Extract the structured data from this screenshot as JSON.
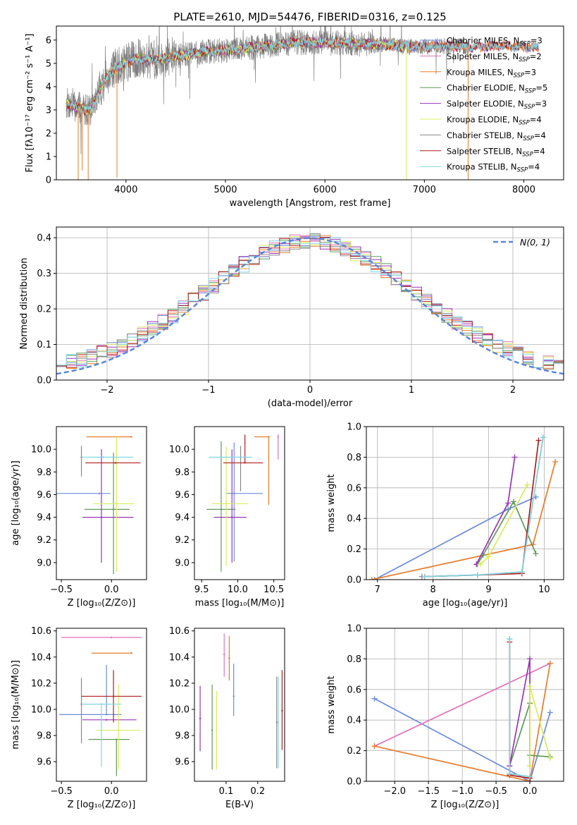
{
  "figure_title": "PLATE=2610, MJD=54476, FIBERID=0316, z=0.125",
  "colors": {
    "chabrier_miles": "#6a8bdc",
    "salpeter_miles": "#e26fb8",
    "kroupa_miles": "#e87b2c",
    "chabrier_elodie": "#5f9a57",
    "salpeter_elodie": "#9a32b8",
    "kroupa_elodie": "#d9ec5a",
    "chabrier_stelib": "#888888",
    "salpeter_stelib": "#b21c1c",
    "kroupa_stelib": "#7fd8e4",
    "gaussian": "#5b86d6",
    "grid": "#b0b0b0"
  },
  "chart_data": [
    {
      "id": "spectrum",
      "type": "line",
      "xlabel": "wavelength [Angstrom, rest frame]",
      "ylabel": "Flux [fλ10⁻¹⁷ erg cm⁻² s⁻¹ A⁻¹]",
      "xlim": [
        3300,
        8400
      ],
      "ylim": [
        0,
        6.6
      ],
      "xticks": [
        "4000",
        "5000",
        "6000",
        "7000",
        "8000"
      ],
      "yticks": [
        "0",
        "1",
        "2",
        "3",
        "4",
        "5",
        "6"
      ],
      "grid": false,
      "legend_position": "top-right",
      "legend": [
        {
          "label": "Chabrier MILES, N",
          "sub": "SSP",
          "tail": "=3",
          "color_key": "chabrier_miles"
        },
        {
          "label": "Salpeter MILES, N",
          "sub": "SSP",
          "tail": "=2",
          "color_key": "salpeter_miles"
        },
        {
          "label": "Kroupa MILES, N",
          "sub": "SSP",
          "tail": "=3",
          "color_key": "kroupa_miles"
        },
        {
          "label": "Chabrier ELODIE, N",
          "sub": "SSP",
          "tail": "=5",
          "color_key": "chabrier_elodie"
        },
        {
          "label": "Salpeter ELODIE, N",
          "sub": "SSP",
          "tail": "=3",
          "color_key": "salpeter_elodie"
        },
        {
          "label": "Kroupa ELODIE, N",
          "sub": "SSP",
          "tail": "=4",
          "color_key": "kroupa_elodie"
        },
        {
          "label": "Chabrier STELIB, N",
          "sub": "SSP",
          "tail": "=4",
          "color_key": "chabrier_stelib"
        },
        {
          "label": "Salpeter STELIB, N",
          "sub": "SSP",
          "tail": "=4",
          "color_key": "salpeter_stelib"
        },
        {
          "label": "Kroupa STELIB, N",
          "sub": "SSP",
          "tail": "=4",
          "color_key": "kroupa_stelib"
        }
      ],
      "continuum": [
        [
          3400,
          3.3
        ],
        [
          3500,
          3.1
        ],
        [
          3650,
          3.0
        ],
        [
          3750,
          4.0
        ],
        [
          3850,
          4.7
        ],
        [
          3950,
          4.9
        ],
        [
          4100,
          5.2
        ],
        [
          4300,
          5.15
        ],
        [
          4500,
          5.3
        ],
        [
          4800,
          5.5
        ],
        [
          5100,
          5.6
        ],
        [
          5400,
          5.75
        ],
        [
          5700,
          5.9
        ],
        [
          6000,
          5.9
        ],
        [
          6300,
          5.85
        ],
        [
          6600,
          5.8
        ],
        [
          6900,
          5.7
        ],
        [
          7200,
          5.75
        ],
        [
          7500,
          5.7
        ],
        [
          7800,
          5.75
        ],
        [
          8000,
          5.7
        ],
        [
          8150,
          5.65
        ]
      ],
      "data_range": [
        3400,
        7450
      ]
    },
    {
      "id": "residuals",
      "type": "histogram",
      "xlabel": "(data-model)/error",
      "ylabel": "Normed distribution",
      "xlim": [
        -2.5,
        2.5
      ],
      "ylim": [
        0,
        0.43
      ],
      "xticks": [
        "−2",
        "−1",
        "0",
        "1",
        "2"
      ],
      "yticks": [
        "0.0",
        "0.1",
        "0.2",
        "0.3",
        "0.4"
      ],
      "grid": true,
      "legend_position": "top-right",
      "legend_label": "N(0, 1)",
      "bin_width": 0.1,
      "bin_start": -2.5
    },
    {
      "id": "age_vs_Z",
      "type": "scatter",
      "xlabel": "Z [log₁₀(Z/Z⊙)]",
      "ylabel": "age  [log₁₀(age/yr)]",
      "xlim": [
        -0.55,
        0.35
      ],
      "ylim": [
        8.85,
        10.2
      ],
      "xticks": [
        "−0.5",
        "0.0"
      ],
      "yticks": [
        "9.0",
        "9.2",
        "9.4",
        "9.6",
        "9.8",
        "10.0"
      ],
      "grid": false,
      "points": [
        {
          "x": -0.12,
          "y": 9.61,
          "xerr": [
            0.45,
            0.11
          ],
          "yerr": [
            0.0,
            0.0
          ],
          "color_key": "chabrier_miles"
        },
        {
          "x": 0.2,
          "y": 10.11,
          "xerr": [
            0.45,
            0.0
          ],
          "yerr": [
            0.0,
            0.0
          ],
          "color_key": "kroupa_miles"
        },
        {
          "x": 0.02,
          "y": 9.47,
          "xerr": [
            0.29,
            0.16
          ],
          "yerr": [
            0.57,
            0.5
          ],
          "color_key": "chabrier_elodie"
        },
        {
          "x": -0.1,
          "y": 9.4,
          "xerr": [
            0.19,
            0.32
          ],
          "yerr": [
            0.4,
            0.6
          ],
          "color_key": "salpeter_elodie"
        },
        {
          "x": 0.05,
          "y": 9.52,
          "xerr": [
            0.23,
            0.18
          ],
          "yerr": [
            0.6,
            0.6
          ],
          "color_key": "kroupa_elodie"
        },
        {
          "x": -0.3,
          "y": 9.93,
          "xerr": [
            0.0,
            0.0
          ],
          "yerr": [
            0.17,
            0.1
          ],
          "color_key": "chabrier_stelib"
        },
        {
          "x": 0.04,
          "y": 9.88,
          "xerr": [
            0.3,
            0.25
          ],
          "yerr": [
            0.0,
            0.0
          ],
          "color_key": "salpeter_stelib"
        },
        {
          "x": -0.08,
          "y": 9.93,
          "xerr": [
            0.22,
            0.3
          ],
          "yerr": [
            0.0,
            0.0
          ],
          "color_key": "kroupa_stelib"
        }
      ]
    },
    {
      "id": "age_vs_mass",
      "type": "scatter",
      "xlabel": "mass [log₁₀(M/M⊙)]",
      "ylabel": "",
      "xlim": [
        9.4,
        10.65
      ],
      "ylim": [
        8.85,
        10.2
      ],
      "xticks": [
        "9.5",
        "10.0",
        "10.5"
      ],
      "yticks": [
        "9.0",
        "9.2",
        "9.4",
        "9.6",
        "9.8",
        "10.0"
      ],
      "grid": false,
      "points": [
        {
          "x": 9.95,
          "y": 9.61,
          "xerr": [
            0.1,
            0.4
          ],
          "yerr": [
            0.6,
            0.45
          ],
          "color_key": "chabrier_miles"
        },
        {
          "x": 10.56,
          "y": 10.11,
          "xerr": [
            0.0,
            0.0
          ],
          "yerr": [
            0.2,
            0.02
          ],
          "color_key": "salpeter_miles"
        },
        {
          "x": 10.43,
          "y": 10.11,
          "xerr": [
            0.2,
            0.0
          ],
          "yerr": [
            0.6,
            0.0
          ],
          "color_key": "kroupa_miles"
        },
        {
          "x": 9.77,
          "y": 9.47,
          "xerr": [
            0.2,
            0.2
          ],
          "yerr": [
            0.55,
            0.6
          ],
          "color_key": "chabrier_elodie"
        },
        {
          "x": 9.92,
          "y": 9.4,
          "xerr": [
            0.25,
            0.2
          ],
          "yerr": [
            0.4,
            0.6
          ],
          "color_key": "salpeter_elodie"
        },
        {
          "x": 9.84,
          "y": 9.52,
          "xerr": [
            0.2,
            0.3
          ],
          "yerr": [
            0.55,
            0.5
          ],
          "color_key": "kroupa_elodie"
        },
        {
          "x": 10.04,
          "y": 9.93,
          "xerr": [
            0.0,
            0.0
          ],
          "yerr": [
            0.3,
            0.1
          ],
          "color_key": "chabrier_stelib"
        },
        {
          "x": 10.1,
          "y": 9.88,
          "xerr": [
            0.3,
            0.25
          ],
          "yerr": [
            0.0,
            0.25
          ],
          "color_key": "salpeter_stelib"
        },
        {
          "x": 9.95,
          "y": 9.93,
          "xerr": [
            0.35,
            0.25
          ],
          "yerr": [
            0.0,
            0.0
          ],
          "color_key": "kroupa_stelib"
        }
      ]
    },
    {
      "id": "mass_weight_vs_age",
      "type": "line",
      "xlabel": "age  [log₁₀(age/yr)]",
      "ylabel": "mass weight",
      "xlim": [
        6.8,
        10.35
      ],
      "ylim": [
        0,
        1.0
      ],
      "xticks": [
        "7",
        "8",
        "9",
        "10"
      ],
      "yticks": [
        "0.0",
        "0.2",
        "0.4",
        "0.6",
        "0.8",
        "1.0"
      ],
      "grid": true,
      "series": [
        {
          "color_key": "chabrier_miles",
          "x": [
            6.95,
            9.35,
            9.85
          ],
          "y": [
            0.0,
            0.46,
            0.54
          ]
        },
        {
          "color_key": "kroupa_miles",
          "x": [
            6.9,
            9.8,
            10.2
          ],
          "y": [
            0.0,
            0.23,
            0.77
          ]
        },
        {
          "color_key": "chabrier_elodie",
          "x": [
            8.8,
            8.9,
            9.45,
            9.85
          ],
          "y": [
            0.1,
            0.16,
            0.51,
            0.17
          ]
        },
        {
          "color_key": "salpeter_elodie",
          "x": [
            8.78,
            9.35,
            9.47
          ],
          "y": [
            0.1,
            0.5,
            0.8
          ]
        },
        {
          "color_key": "kroupa_elodie",
          "x": [
            8.85,
            9.0,
            9.7
          ],
          "y": [
            0.1,
            0.15,
            0.62
          ]
        },
        {
          "color_key": "chabrier_stelib",
          "x": [
            7.8,
            8.8,
            9.6,
            9.98
          ],
          "y": [
            0.02,
            0.03,
            0.05,
            0.93
          ]
        },
        {
          "color_key": "salpeter_stelib",
          "x": [
            7.85,
            8.8,
            9.6,
            9.9
          ],
          "y": [
            0.02,
            0.03,
            0.04,
            0.91
          ]
        },
        {
          "color_key": "kroupa_stelib",
          "x": [
            7.85,
            8.8,
            9.6,
            9.98
          ],
          "y": [
            0.02,
            0.03,
            0.05,
            0.93
          ]
        }
      ]
    },
    {
      "id": "mass_vs_Z",
      "type": "scatter",
      "xlabel": "Z [log₁₀(Z/Z⊙)]",
      "ylabel": "mass [log₁₀(M/M⊙)]",
      "xlim": [
        -0.55,
        0.35
      ],
      "ylim": [
        9.45,
        10.62
      ],
      "xticks": [
        "−0.5",
        "0.0"
      ],
      "yticks": [
        "9.6",
        "9.8",
        "10.0",
        "10.2",
        "10.4",
        "10.6"
      ],
      "grid": false,
      "points": [
        {
          "x": -0.05,
          "y": 9.96,
          "xerr": [
            0.47,
            0.15
          ],
          "yerr": [
            0.0,
            0.38
          ],
          "color_key": "chabrier_miles"
        },
        {
          "x": 0.0,
          "y": 10.55,
          "xerr": [
            0.5,
            0.3
          ],
          "yerr": [
            0.0,
            0.0
          ],
          "color_key": "salpeter_miles"
        },
        {
          "x": 0.2,
          "y": 10.43,
          "xerr": [
            0.4,
            0.0
          ],
          "yerr": [
            0.0,
            0.0
          ],
          "color_key": "kroupa_miles"
        },
        {
          "x": 0.05,
          "y": 9.77,
          "xerr": [
            0.28,
            0.13
          ],
          "yerr": [
            0.28,
            0.0
          ],
          "color_key": "chabrier_elodie"
        },
        {
          "x": -0.05,
          "y": 9.92,
          "xerr": [
            0.24,
            0.3
          ],
          "yerr": [
            0.0,
            0.0
          ],
          "color_key": "salpeter_elodie"
        },
        {
          "x": 0.07,
          "y": 9.84,
          "xerr": [
            0.22,
            0.22
          ],
          "yerr": [
            0.3,
            0.35
          ],
          "color_key": "kroupa_elodie"
        },
        {
          "x": -0.3,
          "y": 10.04,
          "xerr": [
            0.0,
            0.3
          ],
          "yerr": [
            0.3,
            0.2
          ],
          "color_key": "chabrier_stelib"
        },
        {
          "x": 0.02,
          "y": 10.1,
          "xerr": [
            0.32,
            0.28
          ],
          "yerr": [
            0.2,
            0.2
          ],
          "color_key": "salpeter_stelib"
        },
        {
          "x": -0.1,
          "y": 10.04,
          "xerr": [
            0.2,
            0.2
          ],
          "yerr": [
            0.48,
            0.0
          ],
          "color_key": "kroupa_stelib"
        }
      ]
    },
    {
      "id": "mass_vs_ebv",
      "type": "scatter",
      "xlabel": "E(B-V)",
      "ylabel": "",
      "xlim": [
        0.0,
        0.285
      ],
      "ylim": [
        9.45,
        10.62
      ],
      "xticks": [
        "0.1",
        "0.2"
      ],
      "yticks": [
        "9.6",
        "9.8",
        "10.0",
        "10.2",
        "10.4",
        "10.6"
      ],
      "grid": false,
      "points": [
        {
          "x": 0.124,
          "y": 10.1,
          "yerr": [
            0.15,
            0.25
          ],
          "color_key": "chabrier_miles"
        },
        {
          "x": 0.094,
          "y": 10.42,
          "yerr": [
            0.17,
            0.16
          ],
          "color_key": "salpeter_miles"
        },
        {
          "x": 0.11,
          "y": 10.39,
          "yerr": [
            0.17,
            0.17
          ],
          "color_key": "kroupa_miles"
        },
        {
          "x": 0.056,
          "y": 9.84,
          "yerr": [
            0.3,
            0.35
          ],
          "color_key": "chabrier_elodie"
        },
        {
          "x": 0.018,
          "y": 9.93,
          "yerr": [
            0.25,
            0.25
          ],
          "color_key": "salpeter_elodie"
        },
        {
          "x": 0.07,
          "y": 9.84,
          "yerr": [
            0.3,
            0.3
          ],
          "color_key": "kroupa_elodie"
        },
        {
          "x": 0.26,
          "y": 9.9,
          "yerr": [
            0.35,
            0.35
          ],
          "color_key": "chabrier_stelib"
        },
        {
          "x": 0.277,
          "y": 9.99,
          "yerr": [
            0.3,
            0.31
          ],
          "color_key": "salpeter_stelib"
        },
        {
          "x": 0.265,
          "y": 9.9,
          "yerr": [
            0.35,
            0.35
          ],
          "color_key": "kroupa_stelib"
        }
      ]
    },
    {
      "id": "mass_weight_vs_Z",
      "type": "line",
      "xlabel": "Z [log₁₀(Z/Z⊙)]",
      "ylabel": "mass weight",
      "xlim": [
        -2.42,
        0.5
      ],
      "ylim": [
        0,
        1.0
      ],
      "xticks": [
        "−2.0",
        "−1.5",
        "−1.0",
        "−0.5",
        "0.0"
      ],
      "yticks": [
        "0.0",
        "0.2",
        "0.4",
        "0.6",
        "0.8",
        "1.0"
      ],
      "grid": true,
      "series": [
        {
          "color_key": "chabrier_miles",
          "x": [
            -2.3,
            0.0,
            0.3
          ],
          "y": [
            0.54,
            0.0,
            0.45
          ]
        },
        {
          "color_key": "salpeter_miles",
          "x": [
            -2.3,
            0.3
          ],
          "y": [
            0.23,
            0.77
          ]
        },
        {
          "color_key": "kroupa_miles",
          "x": [
            -2.3,
            0.0,
            0.3
          ],
          "y": [
            0.23,
            0.0,
            0.77
          ]
        },
        {
          "color_key": "chabrier_elodie",
          "x": [
            -0.3,
            0.0,
            0.0,
            0.3
          ],
          "y": [
            0.1,
            0.51,
            0.17,
            0.16
          ]
        },
        {
          "color_key": "salpeter_elodie",
          "x": [
            -0.3,
            0.0,
            0.0
          ],
          "y": [
            0.1,
            0.8,
            0.1
          ]
        },
        {
          "color_key": "kroupa_elodie",
          "x": [
            0.0,
            0.0,
            0.3
          ],
          "y": [
            0.1,
            0.62,
            0.15
          ]
        },
        {
          "color_key": "chabrier_stelib",
          "x": [
            -0.3,
            -0.3,
            0.0
          ],
          "y": [
            0.93,
            0.05,
            0.03
          ]
        },
        {
          "color_key": "salpeter_stelib",
          "x": [
            -0.3,
            -0.3,
            0.0
          ],
          "y": [
            0.91,
            0.04,
            0.02
          ]
        },
        {
          "color_key": "kroupa_stelib",
          "x": [
            -0.3,
            -0.3,
            0.0
          ],
          "y": [
            0.93,
            0.05,
            0.03
          ]
        }
      ]
    }
  ]
}
